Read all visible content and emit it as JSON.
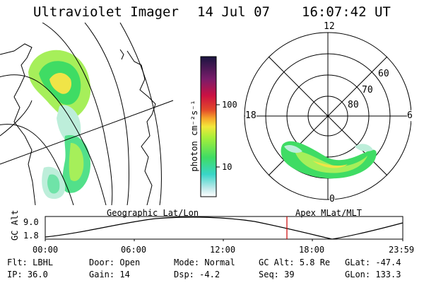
{
  "header": {
    "title": "Ultraviolet Imager",
    "date": "14 Jul 07",
    "time": "16:07:42 UT"
  },
  "colorbar": {
    "unit_label": "photon cm⁻²s⁻¹",
    "ticks": [
      "100",
      "10"
    ]
  },
  "left_panel": {
    "label": "Geographic Lat/Lon"
  },
  "right_panel": {
    "label": "Apex MLat/MLT",
    "mlt_labels": [
      "12",
      "18",
      "6",
      "0"
    ],
    "lat_labels": [
      "60",
      "70",
      "80"
    ]
  },
  "altitude_plot": {
    "ylabel": "GC Alt",
    "yticks": [
      "9.0",
      "1.8"
    ],
    "xticks": [
      "00:00",
      "06:00",
      "12:00",
      "18:00",
      "23:59"
    ],
    "current_time_marker": "16:07:42",
    "marker_color": "#cc0000"
  },
  "info": {
    "row1": [
      {
        "label": "Flt:",
        "value": "LBHL"
      },
      {
        "label": "Door:",
        "value": "Open"
      },
      {
        "label": "Mode:",
        "value": "Normal"
      },
      {
        "label": "GC Alt:",
        "value": "5.8 Re"
      },
      {
        "label": "GLat:",
        "value": "-47.4"
      }
    ],
    "row2": [
      {
        "label": "IP:",
        "value": "36.0"
      },
      {
        "label": "Gain:",
        "value": "14"
      },
      {
        "label": "Dsp:",
        "value": "-4.2"
      },
      {
        "label": "Seq:",
        "value": "39"
      },
      {
        "label": "GLon:",
        "value": "133.3"
      }
    ]
  }
}
